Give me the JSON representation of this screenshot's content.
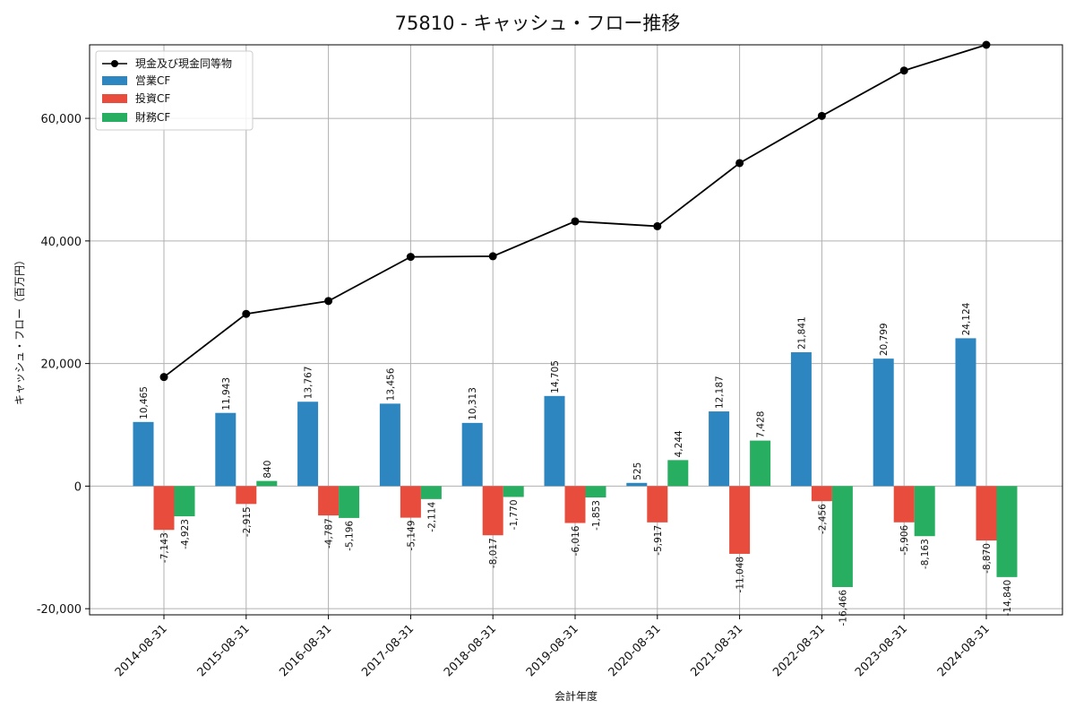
{
  "chart_data": {
    "type": "bar",
    "title": "75810 - キャッシュ・フロー推移",
    "xlabel": "会計年度",
    "ylabel": "キャッシュ・フロー（百万円）",
    "ylim": [
      -21000,
      72000
    ],
    "yticks": [
      -20000,
      0,
      20000,
      40000,
      60000
    ],
    "ytick_labels": [
      "-20,000",
      "0",
      "20,000",
      "40,000",
      "60,000"
    ],
    "grid": true,
    "legend_position": "top-left",
    "categories": [
      "2014-08-31",
      "2015-08-31",
      "2016-08-31",
      "2017-08-31",
      "2018-08-31",
      "2019-08-31",
      "2020-08-31",
      "2021-08-31",
      "2022-08-31",
      "2023-08-31",
      "2024-08-31"
    ],
    "series": [
      {
        "name": "営業CF",
        "kind": "bar",
        "color": "#2e86c1",
        "values": [
          10465,
          11943,
          13767,
          13456,
          10313,
          14705,
          525,
          12187,
          21841,
          20799,
          24124
        ],
        "labels": [
          "10,465",
          "11,943",
          "13,767",
          "13,456",
          "10,313",
          "14,705",
          "525",
          "12,187",
          "21,841",
          "20,799",
          "24,124"
        ]
      },
      {
        "name": "投資CF",
        "kind": "bar",
        "color": "#e74c3c",
        "values": [
          -7143,
          -2915,
          -4787,
          -5149,
          -8017,
          -6016,
          -5917,
          -11048,
          -2456,
          -5906,
          -8870
        ],
        "labels": [
          "-7,143",
          "-2,915",
          "-4,787",
          "-5,149",
          "-8,017",
          "-6,016",
          "-5,917",
          "-11,048",
          "-2,456",
          "-5,906",
          "-8,870"
        ]
      },
      {
        "name": "財務CF",
        "kind": "bar",
        "color": "#27ae60",
        "values": [
          -4923,
          840,
          -5196,
          -2114,
          -1770,
          -1853,
          4244,
          7428,
          -16466,
          -8163,
          -14840
        ],
        "labels": [
          "-4,923",
          "840",
          "-5,196",
          "-2,114",
          "-1,770",
          "-1,853",
          "4,244",
          "7,428",
          "-16,466",
          "-8,163",
          "-14,840"
        ]
      }
    ],
    "line_series": {
      "name": "現金及び現金同等物",
      "color": "#000000",
      "values": [
        17800,
        28100,
        30200,
        37400,
        37500,
        43200,
        42400,
        52700,
        60400,
        67800,
        72000
      ]
    }
  }
}
